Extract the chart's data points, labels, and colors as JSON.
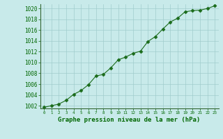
{
  "x": [
    0,
    1,
    2,
    3,
    4,
    5,
    6,
    7,
    8,
    9,
    10,
    11,
    12,
    13,
    14,
    15,
    16,
    17,
    18,
    19,
    20,
    21,
    22,
    23
  ],
  "y": [
    1001.7,
    1002.0,
    1002.3,
    1003.0,
    1004.1,
    1004.8,
    1005.9,
    1007.5,
    1007.8,
    1009.0,
    1010.5,
    1011.0,
    1011.7,
    1012.1,
    1013.9,
    1014.8,
    1016.2,
    1017.5,
    1018.2,
    1019.4,
    1019.6,
    1019.7,
    1020.0,
    1020.5
  ],
  "ylim_min": 1001.5,
  "ylim_max": 1020.8,
  "xlim_min": -0.5,
  "xlim_max": 23.5,
  "yticks": [
    1002,
    1004,
    1006,
    1008,
    1010,
    1012,
    1014,
    1016,
    1018,
    1020
  ],
  "xticks": [
    0,
    1,
    2,
    3,
    4,
    5,
    6,
    7,
    8,
    9,
    10,
    11,
    12,
    13,
    14,
    15,
    16,
    17,
    18,
    19,
    20,
    21,
    22,
    23
  ],
  "line_color": "#1a6b1a",
  "marker": "D",
  "marker_size": 2.5,
  "bg_color": "#c8eaea",
  "grid_color": "#a0cccc",
  "xlabel": "Graphe pression niveau de la mer (hPa)",
  "xlabel_color": "#006600",
  "tick_label_color": "#006600",
  "tick_color": "#006600",
  "spine_color": "#336633",
  "label_fontsize": 6.0,
  "xlabel_fontsize": 6.5,
  "ytick_fontsize": 5.5,
  "xtick_fontsize": 4.2
}
